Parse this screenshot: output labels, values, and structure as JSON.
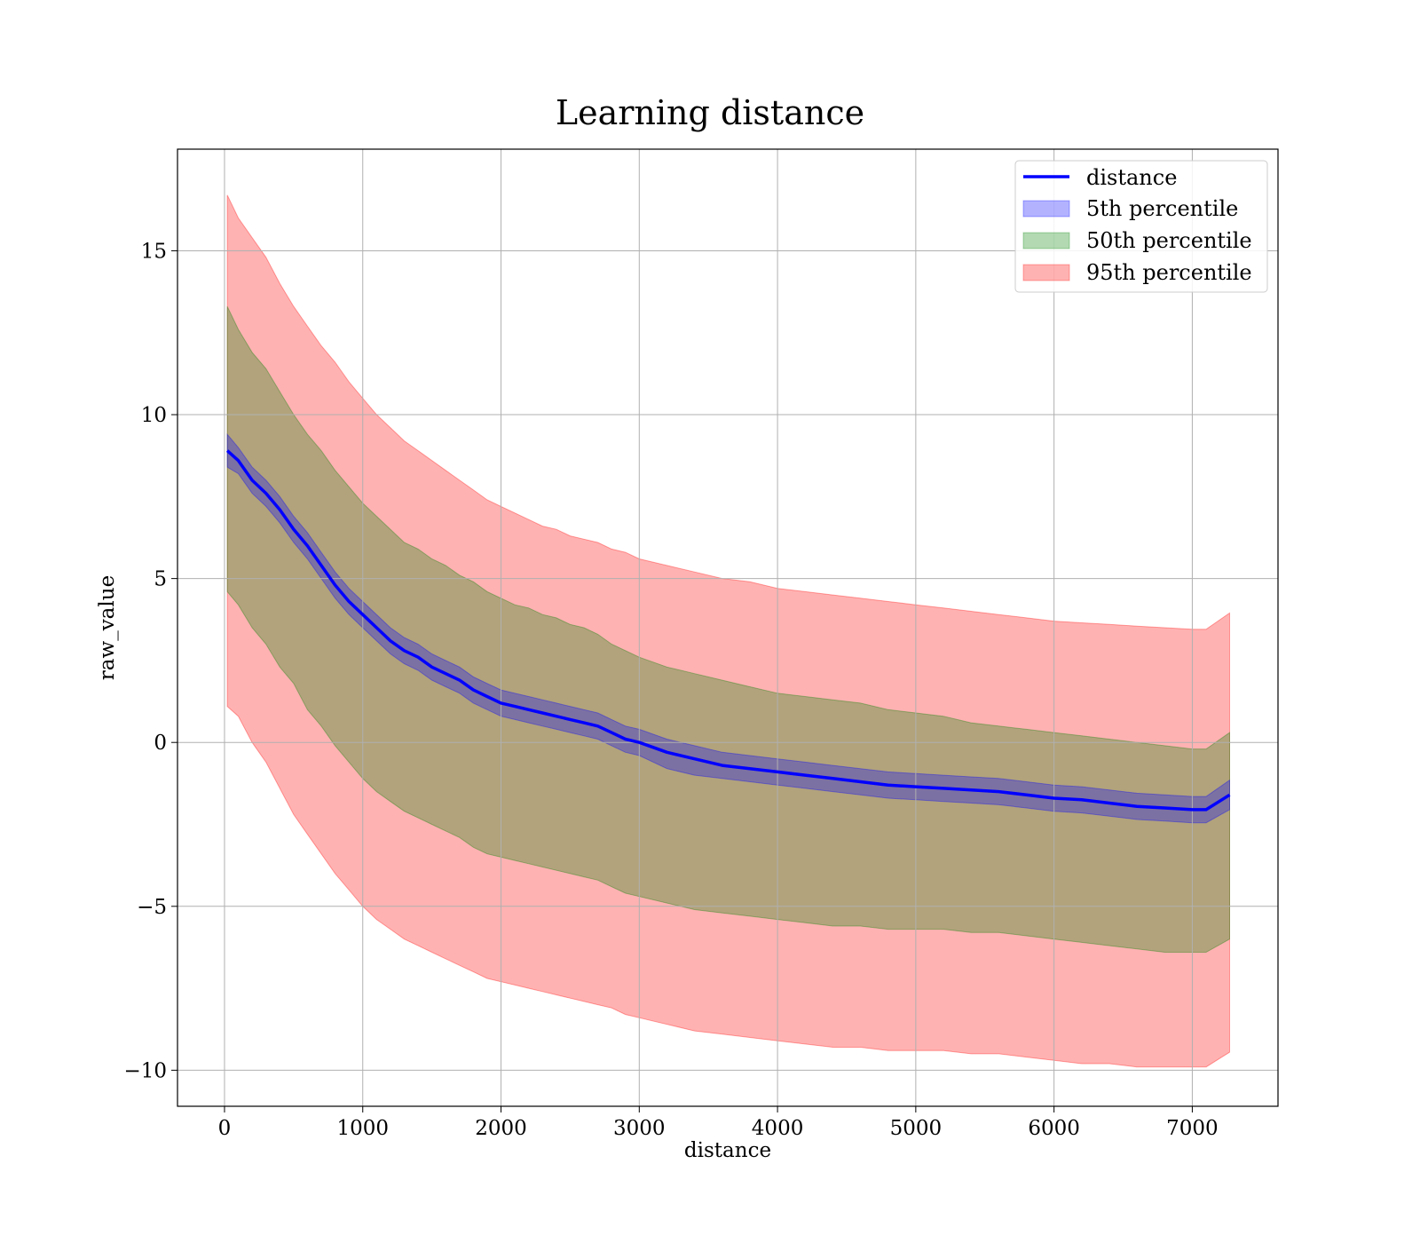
{
  "chart_data": {
    "type": "line",
    "title": "Learning distance",
    "xlabel": "distance",
    "ylabel": "raw_value",
    "xlim": [
      -340,
      7620
    ],
    "ylim": [
      -11.1,
      18.1
    ],
    "xticks": [
      0,
      1000,
      2000,
      3000,
      4000,
      5000,
      6000,
      7000
    ],
    "yticks": [
      -10,
      -5,
      0,
      5,
      10,
      15
    ],
    "xtick_labels": [
      "0",
      "1000",
      "2000",
      "3000",
      "4000",
      "5000",
      "6000",
      "7000"
    ],
    "ytick_labels": [
      "−10",
      "−5",
      "0",
      "5",
      "10",
      "15"
    ],
    "grid": true,
    "legend_position": "top-right",
    "x": [
      20,
      100,
      200,
      300,
      400,
      500,
      600,
      700,
      800,
      900,
      1000,
      1100,
      1200,
      1300,
      1400,
      1500,
      1600,
      1700,
      1800,
      1900,
      2000,
      2100,
      2200,
      2300,
      2400,
      2500,
      2600,
      2700,
      2800,
      2900,
      3000,
      3200,
      3400,
      3600,
      3800,
      4000,
      4200,
      4400,
      4600,
      4800,
      5000,
      5200,
      5400,
      5600,
      5800,
      6000,
      6200,
      6400,
      6600,
      6800,
      7000,
      7100,
      7270
    ],
    "series": [
      {
        "name": "distance",
        "kind": "line",
        "color": "#0000ff",
        "values": [
          8.9,
          8.6,
          8.0,
          7.6,
          7.1,
          6.5,
          6.0,
          5.4,
          4.8,
          4.3,
          3.9,
          3.5,
          3.1,
          2.8,
          2.6,
          2.3,
          2.1,
          1.9,
          1.6,
          1.4,
          1.2,
          1.1,
          1.0,
          0.9,
          0.8,
          0.7,
          0.6,
          0.5,
          0.3,
          0.1,
          0.0,
          -0.3,
          -0.5,
          -0.7,
          -0.8,
          -0.9,
          -1.0,
          -1.1,
          -1.2,
          -1.3,
          -1.35,
          -1.4,
          -1.45,
          -1.5,
          -1.6,
          -1.7,
          -1.75,
          -1.85,
          -1.95,
          -2.0,
          -2.05,
          -2.05,
          -1.6
        ]
      },
      {
        "name": "5th percentile",
        "kind": "band",
        "color": "#0000ff",
        "upper": [
          9.4,
          9.0,
          8.4,
          8.0,
          7.5,
          6.9,
          6.4,
          5.8,
          5.2,
          4.7,
          4.3,
          3.9,
          3.5,
          3.2,
          3.0,
          2.7,
          2.5,
          2.3,
          2.0,
          1.8,
          1.6,
          1.5,
          1.4,
          1.3,
          1.2,
          1.1,
          1.0,
          0.9,
          0.7,
          0.5,
          0.4,
          0.1,
          -0.1,
          -0.3,
          -0.4,
          -0.5,
          -0.6,
          -0.7,
          -0.8,
          -0.9,
          -0.95,
          -1.0,
          -1.05,
          -1.1,
          -1.2,
          -1.3,
          -1.35,
          -1.45,
          -1.55,
          -1.6,
          -1.65,
          -1.65,
          -1.15
        ],
        "lower": [
          8.4,
          8.2,
          7.6,
          7.2,
          6.7,
          6.1,
          5.6,
          5.0,
          4.4,
          3.9,
          3.5,
          3.1,
          2.7,
          2.4,
          2.2,
          1.9,
          1.7,
          1.5,
          1.2,
          1.0,
          0.8,
          0.7,
          0.6,
          0.5,
          0.4,
          0.3,
          0.2,
          0.1,
          -0.1,
          -0.3,
          -0.4,
          -0.8,
          -1.0,
          -1.1,
          -1.2,
          -1.3,
          -1.4,
          -1.5,
          -1.6,
          -1.7,
          -1.75,
          -1.8,
          -1.85,
          -1.9,
          -2.0,
          -2.1,
          -2.15,
          -2.25,
          -2.35,
          -2.4,
          -2.45,
          -2.45,
          -2.05
        ]
      },
      {
        "name": "50th percentile",
        "kind": "band",
        "color": "#008000",
        "upper": [
          13.3,
          12.6,
          11.9,
          11.4,
          10.7,
          10.0,
          9.4,
          8.9,
          8.3,
          7.8,
          7.3,
          6.9,
          6.5,
          6.1,
          5.9,
          5.6,
          5.4,
          5.1,
          4.9,
          4.6,
          4.4,
          4.2,
          4.1,
          3.9,
          3.8,
          3.6,
          3.5,
          3.3,
          3.0,
          2.8,
          2.6,
          2.3,
          2.1,
          1.9,
          1.7,
          1.5,
          1.4,
          1.3,
          1.2,
          1.0,
          0.9,
          0.8,
          0.6,
          0.5,
          0.4,
          0.3,
          0.2,
          0.1,
          0.0,
          -0.1,
          -0.2,
          -0.2,
          0.3
        ],
        "lower": [
          4.6,
          4.2,
          3.5,
          3.0,
          2.3,
          1.8,
          1.0,
          0.5,
          -0.1,
          -0.6,
          -1.1,
          -1.5,
          -1.8,
          -2.1,
          -2.3,
          -2.5,
          -2.7,
          -2.9,
          -3.2,
          -3.4,
          -3.5,
          -3.6,
          -3.7,
          -3.8,
          -3.9,
          -4.0,
          -4.1,
          -4.2,
          -4.4,
          -4.6,
          -4.7,
          -4.9,
          -5.1,
          -5.2,
          -5.3,
          -5.4,
          -5.5,
          -5.6,
          -5.6,
          -5.7,
          -5.7,
          -5.7,
          -5.8,
          -5.8,
          -5.9,
          -6.0,
          -6.1,
          -6.2,
          -6.3,
          -6.4,
          -6.4,
          -6.4,
          -6.0
        ]
      },
      {
        "name": "95th percentile",
        "kind": "band",
        "color": "#ff0000",
        "upper": [
          16.7,
          16.0,
          15.4,
          14.8,
          14.0,
          13.3,
          12.7,
          12.1,
          11.6,
          11.0,
          10.5,
          10.0,
          9.6,
          9.2,
          8.9,
          8.6,
          8.3,
          8.0,
          7.7,
          7.4,
          7.2,
          7.0,
          6.8,
          6.6,
          6.5,
          6.3,
          6.2,
          6.1,
          5.9,
          5.8,
          5.6,
          5.4,
          5.2,
          5.0,
          4.9,
          4.7,
          4.6,
          4.5,
          4.4,
          4.3,
          4.2,
          4.1,
          4.0,
          3.9,
          3.8,
          3.7,
          3.65,
          3.6,
          3.55,
          3.5,
          3.45,
          3.45,
          3.95
        ],
        "lower": [
          1.1,
          0.8,
          0.0,
          -0.6,
          -1.4,
          -2.2,
          -2.8,
          -3.4,
          -4.0,
          -4.5,
          -5.0,
          -5.4,
          -5.7,
          -6.0,
          -6.2,
          -6.4,
          -6.6,
          -6.8,
          -7.0,
          -7.2,
          -7.3,
          -7.4,
          -7.5,
          -7.6,
          -7.7,
          -7.8,
          -7.9,
          -8.0,
          -8.1,
          -8.3,
          -8.4,
          -8.6,
          -8.8,
          -8.9,
          -9.0,
          -9.1,
          -9.2,
          -9.3,
          -9.3,
          -9.4,
          -9.4,
          -9.4,
          -9.5,
          -9.5,
          -9.6,
          -9.7,
          -9.8,
          -9.8,
          -9.9,
          -9.9,
          -9.9,
          -9.9,
          -9.45
        ]
      }
    ]
  }
}
